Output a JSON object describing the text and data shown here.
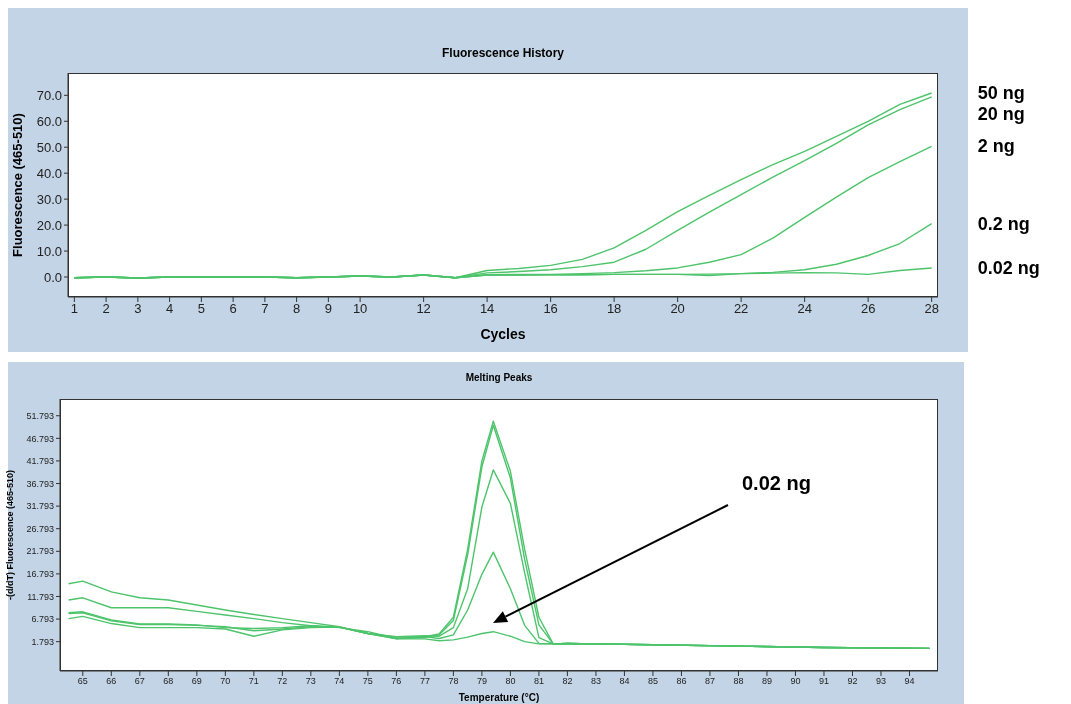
{
  "chart_data": [
    {
      "type": "line",
      "title": "Fluorescence History",
      "xlabel": "Cycles",
      "ylabel": "Fluorescence (465-510)",
      "x": [
        1,
        2,
        3,
        4,
        5,
        6,
        7,
        8,
        9,
        10,
        11,
        12,
        13,
        14,
        15,
        16,
        17,
        18,
        19,
        20,
        21,
        22,
        23,
        24,
        25,
        26,
        27,
        28
      ],
      "series": [
        {
          "name": "50 ng",
          "color": "#4dc46b",
          "values": [
            -0.3,
            0,
            -0.4,
            0,
            0,
            0,
            0,
            -0.3,
            0,
            0.4,
            0,
            0.8,
            -0.3,
            2.5,
            3.3,
            4.5,
            6.8,
            11.2,
            18,
            25.2,
            31.5,
            37.5,
            43.3,
            48.4,
            54.2,
            60.0,
            66.5,
            70.9
          ]
        },
        {
          "name": "20 ng",
          "color": "#4dc46b",
          "values": [
            -0.3,
            0,
            -0.4,
            0,
            0,
            0,
            0,
            -0.3,
            0,
            0.4,
            0,
            0.8,
            -0.3,
            1.6,
            2.1,
            2.8,
            4,
            5.7,
            10.7,
            18,
            25,
            31.7,
            38.5,
            44.8,
            51.5,
            58.6,
            64.5,
            69.4
          ]
        },
        {
          "name": "2 ng",
          "color": "#4dc46b",
          "values": [
            -0.3,
            0,
            -0.4,
            0,
            0,
            0,
            0,
            -0.3,
            0,
            0.4,
            0,
            0.8,
            -0.3,
            0.9,
            1,
            1,
            1.3,
            1.7,
            2.4,
            3.5,
            5.7,
            8.6,
            15,
            23,
            30.8,
            38.3,
            44.5,
            50.3
          ]
        },
        {
          "name": "0.2 ng",
          "color": "#4dc46b",
          "values": [
            -0.3,
            0,
            -0.4,
            0,
            0,
            0,
            0,
            -0.3,
            0,
            0.4,
            0,
            0.8,
            -0.3,
            0.8,
            0.8,
            0.9,
            0.9,
            1,
            1,
            1,
            1.1,
            1.3,
            1.8,
            2.8,
            4.9,
            8.3,
            12.9,
            20.6
          ]
        },
        {
          "name": "0.02 ng",
          "color": "#4dc46b",
          "values": [
            -0.3,
            0,
            -0.4,
            0,
            0,
            0,
            0,
            -0.3,
            0,
            0.4,
            0,
            0.8,
            -0.3,
            0.8,
            0.8,
            0.9,
            0.9,
            1,
            1,
            1,
            0.6,
            1.3,
            1.5,
            1.7,
            1.6,
            1,
            2.5,
            3.5
          ]
        }
      ],
      "xlim": [
        0.8,
        28.2
      ],
      "xticks": [
        1,
        2,
        3,
        4,
        5,
        6,
        7,
        8,
        9,
        10,
        12,
        14,
        16,
        18,
        20,
        22,
        24,
        26,
        28
      ],
      "ylim": [
        -7.7,
        78.6
      ],
      "yticks": [
        {
          "value": 0,
          "label": "0.0"
        },
        {
          "value": 10,
          "label": "10.0"
        },
        {
          "value": 20,
          "label": "20.0"
        },
        {
          "value": 30,
          "label": "30.0"
        },
        {
          "value": 40,
          "label": "40.0"
        },
        {
          "value": 50,
          "label": "50.0"
        },
        {
          "value": 60,
          "label": "60.0"
        },
        {
          "value": 70,
          "label": "70.0"
        }
      ]
    },
    {
      "type": "line",
      "title": "Melting Peaks",
      "xlabel": "Temperature (°C)",
      "ylabel": "-(d/dT) Fluorescence (465-510)",
      "x": [
        64.5,
        65,
        66,
        67,
        68,
        69,
        70,
        71,
        72,
        73,
        74,
        75,
        76,
        77,
        77.5,
        78,
        78.5,
        79,
        79.4,
        80,
        80.5,
        81,
        81.5,
        82,
        83,
        85,
        88,
        91,
        94.7
      ],
      "series": [
        {
          "color": "#4dc46b",
          "values": [
            14.6,
            15.2,
            12.8,
            11.5,
            11,
            9.9,
            8.8,
            7.8,
            6.9,
            6,
            5.1,
            3.6,
            2.5,
            2.9,
            3.5,
            7.2,
            22.2,
            41.8,
            50.6,
            39.5,
            22.2,
            7.2,
            1.3,
            1.4,
            1.3,
            1.1,
            0.8,
            0.5,
            0.3
          ]
        },
        {
          "color": "#4dc46b",
          "values": [
            11,
            11.5,
            9.3,
            9.3,
            9.3,
            8.5,
            7.7,
            6.9,
            6,
            5.3,
            4.9,
            4,
            2.5,
            2.7,
            3.3,
            6.5,
            21,
            40.5,
            49.7,
            38,
            20,
            5.5,
            1.3,
            1.4,
            1.3,
            1.1,
            0.8,
            0.5,
            0.3
          ]
        },
        {
          "color": "#4dc46b",
          "values": [
            8.2,
            8.4,
            6.6,
            5.7,
            5.7,
            5.5,
            4.9,
            4.7,
            4.9,
            5.3,
            5,
            3.6,
            2.9,
            3.1,
            3.0,
            4.9,
            13.5,
            31.6,
            39.8,
            32.4,
            17,
            2.7,
            1.3,
            1.4,
            1.3,
            1.1,
            0.8,
            0.5,
            0.3
          ]
        },
        {
          "color": "#4dc46b",
          "values": [
            8.0,
            8.2,
            6.4,
            5.6,
            5.6,
            5.4,
            5.1,
            4.2,
            4.6,
            5.1,
            5,
            3.6,
            2.8,
            2.9,
            2.5,
            3.3,
            8.8,
            16.7,
            21.6,
            13.5,
            5.4,
            1.4,
            1.3,
            1.4,
            1.3,
            1.1,
            0.8,
            0.5,
            0.3
          ]
        },
        {
          "color": "#4dc46b",
          "values": [
            6.9,
            7.4,
            5.8,
            4.9,
            4.9,
            4.9,
            4.6,
            3.0,
            4.4,
            4.9,
            5,
            3.6,
            2.4,
            2.4,
            2.0,
            2.2,
            2.8,
            3.6,
            4.0,
            3.0,
            1.8,
            1.3,
            1.3,
            1.4,
            1.3,
            1.1,
            0.8,
            0.5,
            0.3
          ]
        }
      ],
      "xlim": [
        64.2,
        95
      ],
      "xticks": [
        65,
        66,
        67,
        68,
        69,
        70,
        71,
        72,
        73,
        74,
        75,
        76,
        77,
        78,
        79,
        80,
        81,
        82,
        83,
        84,
        85,
        86,
        87,
        88,
        89,
        90,
        91,
        92,
        93,
        94
      ],
      "ylim": [
        -4.7,
        55.5
      ],
      "yticks": [
        1.793,
        6.793,
        11.793,
        16.793,
        21.793,
        26.793,
        31.793,
        36.793,
        41.793,
        46.793,
        51.793
      ],
      "annotations": [
        "0.02 ng"
      ]
    }
  ]
}
